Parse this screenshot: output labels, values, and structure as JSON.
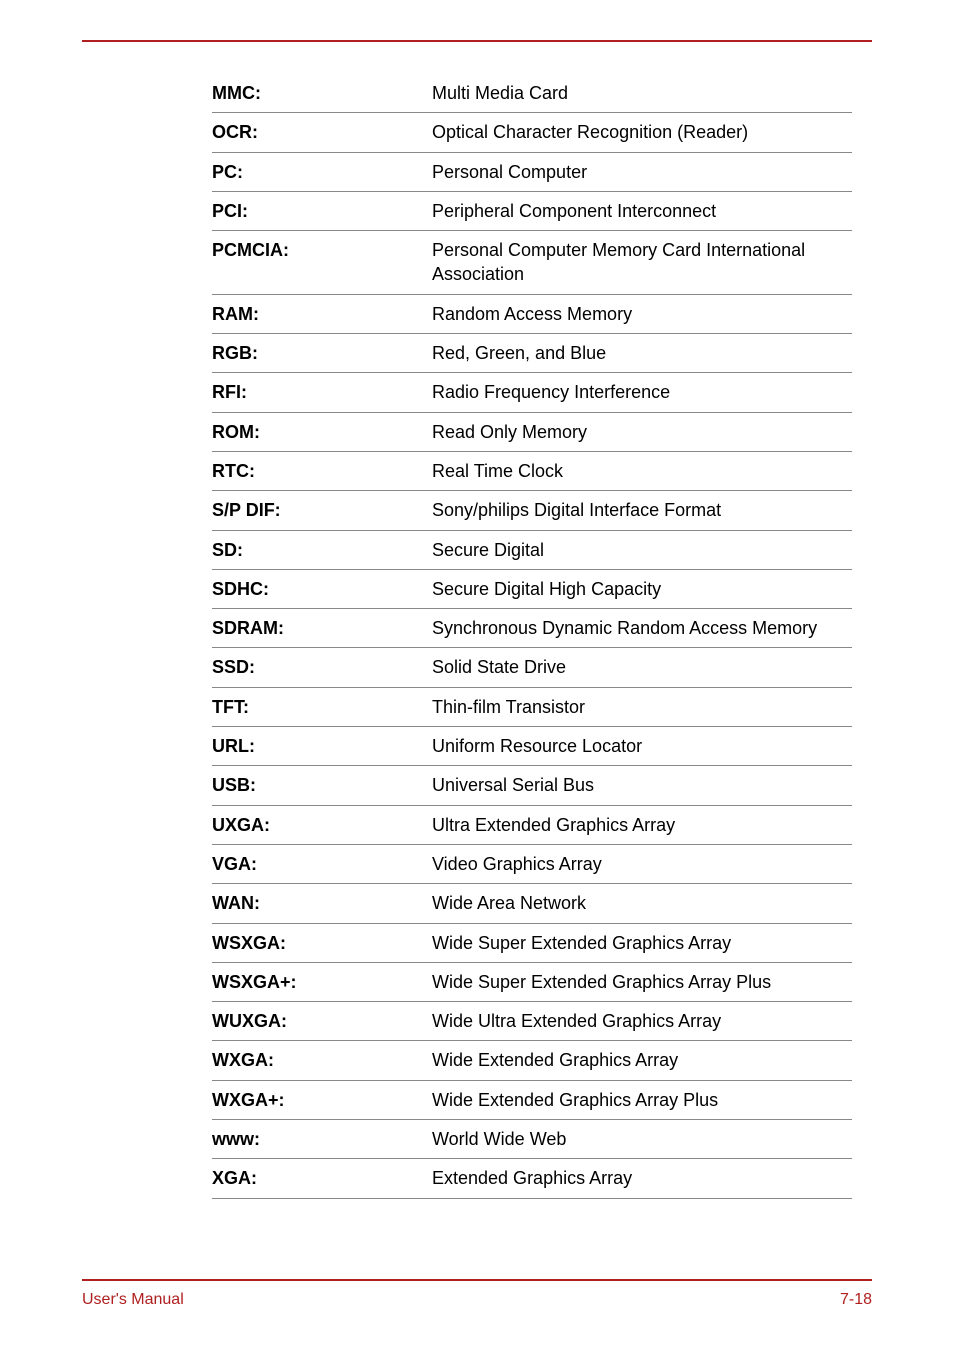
{
  "colors": {
    "rule": "#b02020",
    "text": "#000000",
    "border": "#888888",
    "footer_text": "#b02020",
    "background": "#ffffff"
  },
  "typography": {
    "body_fontsize": 18,
    "footer_fontsize": 16,
    "font_family": "Arial"
  },
  "glossary": {
    "columns": [
      "term",
      "definition"
    ],
    "rows": [
      {
        "term": "MMC:",
        "definition": "Multi Media Card"
      },
      {
        "term": "OCR:",
        "definition": "Optical Character Recognition (Reader)"
      },
      {
        "term": "PC:",
        "definition": "Personal Computer"
      },
      {
        "term": "PCI:",
        "definition": "Peripheral Component Interconnect"
      },
      {
        "term": "PCMCIA:",
        "definition": "Personal Computer Memory Card International Association"
      },
      {
        "term": "RAM:",
        "definition": "Random Access Memory"
      },
      {
        "term": "RGB:",
        "definition": "Red, Green, and Blue"
      },
      {
        "term": "RFI:",
        "definition": "Radio Frequency Interference"
      },
      {
        "term": "ROM:",
        "definition": "Read Only Memory"
      },
      {
        "term": "RTC:",
        "definition": "Real Time Clock"
      },
      {
        "term": "S/P DIF:",
        "definition": "Sony/philips Digital Interface Format"
      },
      {
        "term": "SD:",
        "definition": "Secure Digital"
      },
      {
        "term": "SDHC:",
        "definition": "Secure Digital High Capacity"
      },
      {
        "term": "SDRAM:",
        "definition": "Synchronous Dynamic Random Access Memory"
      },
      {
        "term": "SSD:",
        "definition": "Solid State Drive"
      },
      {
        "term": "TFT:",
        "definition": "Thin-film Transistor"
      },
      {
        "term": "URL:",
        "definition": "Uniform Resource Locator"
      },
      {
        "term": "USB:",
        "definition": "Universal Serial Bus"
      },
      {
        "term": "UXGA:",
        "definition": "Ultra Extended Graphics Array"
      },
      {
        "term": "VGA:",
        "definition": "Video Graphics Array"
      },
      {
        "term": "WAN:",
        "definition": "Wide Area Network"
      },
      {
        "term": "WSXGA:",
        "definition": "Wide Super Extended Graphics Array"
      },
      {
        "term": "WSXGA+:",
        "definition": "Wide Super Extended Graphics Array Plus"
      },
      {
        "term": "WUXGA:",
        "definition": "Wide Ultra Extended Graphics Array"
      },
      {
        "term": "WXGA:",
        "definition": "Wide Extended Graphics Array"
      },
      {
        "term": "WXGA+:",
        "definition": "Wide Extended Graphics Array Plus"
      },
      {
        "term": "www:",
        "definition": "World Wide Web"
      },
      {
        "term": "XGA:",
        "definition": "Extended Graphics Array"
      }
    ]
  },
  "footer": {
    "left": "User's Manual",
    "right": "7-18"
  }
}
